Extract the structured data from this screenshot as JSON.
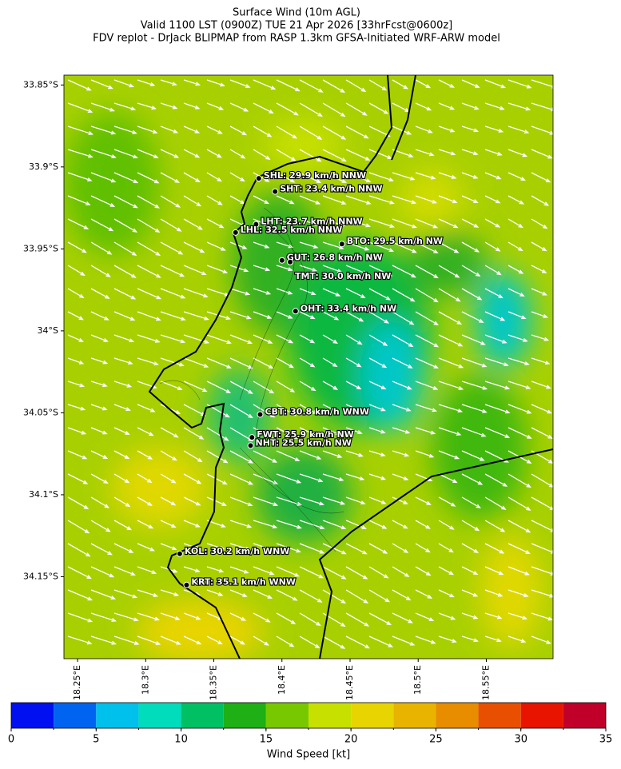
{
  "chart_data": {
    "type": "map",
    "title": [
      "Surface Wind (10m AGL)",
      "Valid 1100 LST (0900Z) TUE 21 Apr 2026 [33hrFcst@0600z]",
      "FDV replot - DrJack BLIPMAP from RASP 1.3km GFSA-Initiated WRF-ARW model"
    ],
    "xlim": [
      18.24,
      18.599
    ],
    "ylim": [
      -34.2,
      -33.844
    ],
    "xticks": [
      {
        "value": 18.25,
        "label": "18.25°E"
      },
      {
        "value": 18.3,
        "label": "18.3°E"
      },
      {
        "value": 18.35,
        "label": "18.35°E"
      },
      {
        "value": 18.4,
        "label": "18.4°E"
      },
      {
        "value": 18.45,
        "label": "18.45°E"
      },
      {
        "value": 18.5,
        "label": "18.5°E"
      },
      {
        "value": 18.55,
        "label": "18.55°E"
      }
    ],
    "yticks": [
      {
        "value": -33.85,
        "label": "33.85°S"
      },
      {
        "value": -33.9,
        "label": "33.9°S"
      },
      {
        "value": -33.95,
        "label": "33.95°S"
      },
      {
        "value": -34,
        "label": "34°S"
      },
      {
        "value": -34.05,
        "label": "34.05°S"
      },
      {
        "value": -34.1,
        "label": "34.1°S"
      },
      {
        "value": -34.15,
        "label": "34.15°S"
      }
    ],
    "stations": [
      {
        "label": "SHL: 29.9 km/h NNW",
        "lon": 18.383,
        "lat": -33.907
      },
      {
        "label": "SHT: 23.4 km/h NNW",
        "lon": 18.395,
        "lat": -33.915
      },
      {
        "label": "LHT: 23.7 km/h NNW",
        "lon": 18.381,
        "lat": -33.935
      },
      {
        "label": "LHL: 32.5 km/h NNW",
        "lon": 18.366,
        "lat": -33.94
      },
      {
        "label": "BTO: 29.5 km/h NW",
        "lon": 18.444,
        "lat": -33.947
      },
      {
        "label": "GUT: 26.8 km/h NW",
        "lon": 18.4,
        "lat": -33.957
      },
      {
        "label": "TMT: 30.0 km/h NW",
        "lon": 18.406,
        "lat": -33.958
      },
      {
        "label": "OHT: 33.4 km/h NW",
        "lon": 18.41,
        "lat": -33.988
      },
      {
        "label": "CBT: 30.8 km/h WNW",
        "lon": 18.384,
        "lat": -34.051
      },
      {
        "label": "FWT: 25.9 km/h NW",
        "lon": 18.378,
        "lat": -34.065
      },
      {
        "label": "NHT: 25.5 km/h NW",
        "lon": 18.377,
        "lat": -34.07
      },
      {
        "label": "KOL: 30.2 km/h WNW",
        "lon": 18.325,
        "lat": -34.136
      },
      {
        "label": "KRT: 35.1 km/h WNW",
        "lon": 18.33,
        "lat": -34.155
      }
    ],
    "colorbar": {
      "label": "Wind Speed [kt]",
      "lim": [
        0,
        35
      ],
      "levels": [
        0,
        2.5,
        5,
        7.5,
        10,
        12.5,
        15,
        17.5,
        20,
        22.5,
        25,
        27.5,
        30,
        32.5,
        35
      ],
      "colors": [
        "#0010f0",
        "#0064f0",
        "#00c0ec",
        "#00dcbc",
        "#00c064",
        "#1eb014",
        "#78c800",
        "#c8e000",
        "#e8d400",
        "#e8b400",
        "#e88c00",
        "#e85000",
        "#e81400",
        "#c00028"
      ],
      "ticks": [
        0,
        5,
        10,
        15,
        20,
        25,
        30,
        35
      ]
    }
  }
}
